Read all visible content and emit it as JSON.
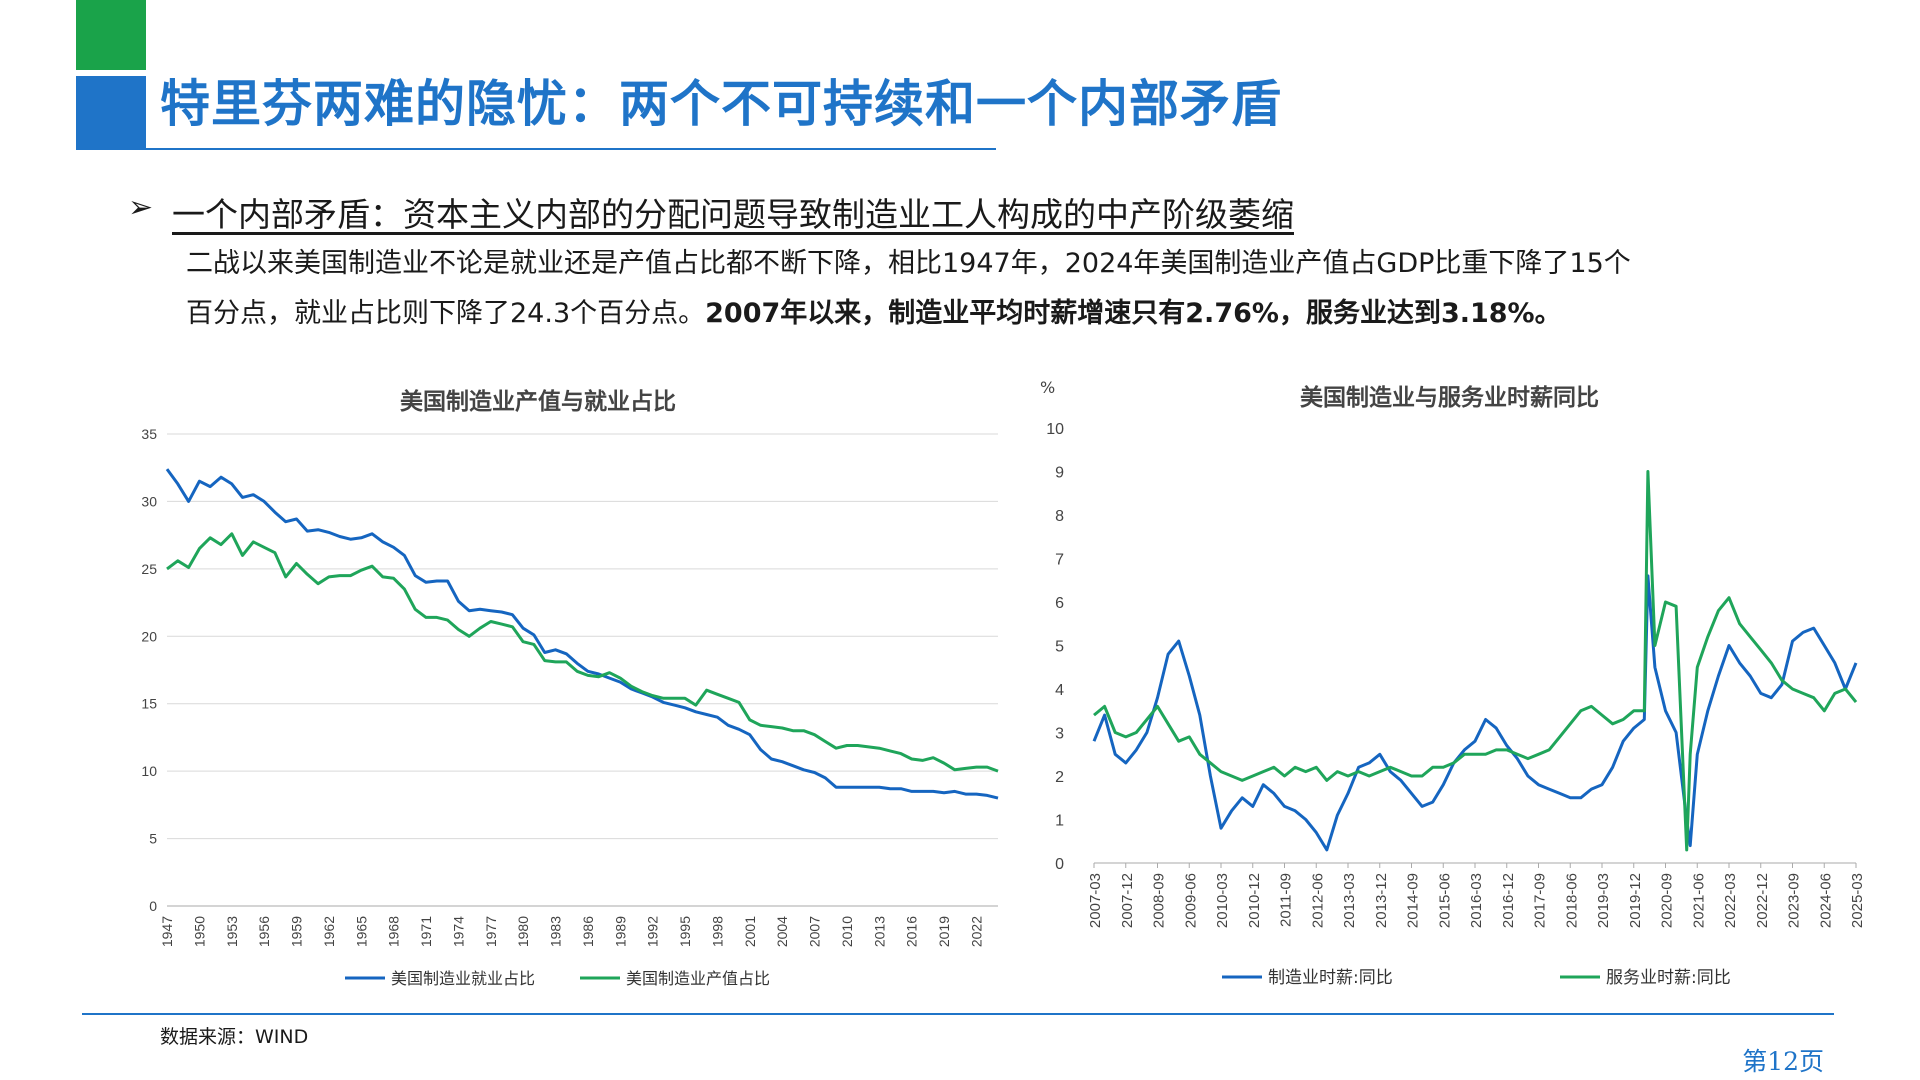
{
  "header": {
    "title": "特里芬两难的隐忧：两个不可持续和一个内部矛盾"
  },
  "section": {
    "bullet_symbol": "➢",
    "subtitle": "一个内部矛盾：资本主义内部的分配问题导致制造业工人构成的中产阶级萎缩",
    "para_line1": "二战以来美国制造业不论是就业还是产值占比都不断下降，相比1947年，2024年美国制造业产值占GDP比重下降了15个",
    "para_line2_normal": "百分点，就业占比则下降了24.3个百分点。",
    "para_line2_bold": "2007年以来，制造业平均时薪增速只有2.76%，服务业达到3.18%。"
  },
  "colors": {
    "accent_blue": "#1f74c8",
    "accent_green": "#1aa34a",
    "series_blue": "#1565c0",
    "series_green": "#1fa55a"
  },
  "footer": {
    "source": "数据来源：WIND",
    "page": "第12页"
  },
  "chart_data": [
    {
      "type": "line",
      "title": "美国制造业产值与就业占比",
      "ylim": [
        0,
        35
      ],
      "yticks": [
        0,
        5,
        10,
        15,
        20,
        25,
        30,
        35
      ],
      "xlim": [
        1947,
        2024
      ],
      "xticks": [
        "1947",
        "1950",
        "1953",
        "1956",
        "1959",
        "1962",
        "1965",
        "1968",
        "1971",
        "1974",
        "1977",
        "1980",
        "1983",
        "1986",
        "1989",
        "1992",
        "1995",
        "1998",
        "2001",
        "2004",
        "2007",
        "2010",
        "2013",
        "2016",
        "2019",
        "2022"
      ],
      "grid": true,
      "legend": "bottom",
      "series": [
        {
          "name": "美国制造业就业占比",
          "color": "#1565c0",
          "x": [
            1947,
            1948,
            1949,
            1950,
            1951,
            1952,
            1953,
            1954,
            1955,
            1956,
            1957,
            1958,
            1959,
            1960,
            1961,
            1962,
            1963,
            1964,
            1965,
            1966,
            1967,
            1968,
            1969,
            1970,
            1971,
            1972,
            1973,
            1974,
            1975,
            1976,
            1977,
            1978,
            1979,
            1980,
            1981,
            1982,
            1983,
            1984,
            1985,
            1986,
            1987,
            1988,
            1989,
            1990,
            1991,
            1992,
            1993,
            1994,
            1995,
            1996,
            1997,
            1998,
            1999,
            2000,
            2001,
            2002,
            2003,
            2004,
            2005,
            2006,
            2007,
            2008,
            2009,
            2010,
            2011,
            2012,
            2013,
            2014,
            2015,
            2016,
            2017,
            2018,
            2019,
            2020,
            2021,
            2022,
            2023,
            2024
          ],
          "y": [
            32.4,
            31.3,
            30.0,
            31.5,
            31.1,
            31.8,
            31.3,
            30.3,
            30.5,
            30.0,
            29.2,
            28.5,
            28.7,
            27.8,
            27.9,
            27.7,
            27.4,
            27.2,
            27.3,
            27.6,
            27.0,
            26.6,
            26.0,
            24.5,
            24.0,
            24.1,
            24.1,
            22.6,
            21.9,
            22.0,
            21.9,
            21.8,
            21.6,
            20.6,
            20.1,
            18.8,
            19.0,
            18.7,
            18.0,
            17.4,
            17.2,
            16.9,
            16.6,
            16.1,
            15.8,
            15.5,
            15.1,
            14.9,
            14.7,
            14.4,
            14.2,
            14.0,
            13.4,
            13.1,
            12.7,
            11.6,
            10.9,
            10.7,
            10.4,
            10.1,
            9.9,
            9.5,
            8.8,
            8.8,
            8.8,
            8.8,
            8.8,
            8.7,
            8.7,
            8.5,
            8.5,
            8.5,
            8.4,
            8.5,
            8.3,
            8.3,
            8.2,
            8.0
          ]
        },
        {
          "name": "美国制造业产值占比",
          "color": "#1fa55a",
          "x": [
            1947,
            1948,
            1949,
            1950,
            1951,
            1952,
            1953,
            1954,
            1955,
            1956,
            1957,
            1958,
            1959,
            1960,
            1961,
            1962,
            1963,
            1964,
            1965,
            1966,
            1967,
            1968,
            1969,
            1970,
            1971,
            1972,
            1973,
            1974,
            1975,
            1976,
            1977,
            1978,
            1979,
            1980,
            1981,
            1982,
            1983,
            1984,
            1985,
            1986,
            1987,
            1988,
            1989,
            1990,
            1991,
            1992,
            1993,
            1994,
            1995,
            1996,
            1997,
            1998,
            1999,
            2000,
            2001,
            2002,
            2003,
            2004,
            2005,
            2006,
            2007,
            2008,
            2009,
            2010,
            2011,
            2012,
            2013,
            2014,
            2015,
            2016,
            2017,
            2018,
            2019,
            2020,
            2021,
            2022,
            2023,
            2024
          ],
          "y": [
            25.0,
            25.6,
            25.1,
            26.5,
            27.3,
            26.8,
            27.6,
            26.0,
            27.0,
            26.6,
            26.2,
            24.4,
            25.4,
            24.6,
            23.9,
            24.4,
            24.5,
            24.5,
            24.9,
            25.2,
            24.4,
            24.3,
            23.5,
            22.0,
            21.4,
            21.4,
            21.2,
            20.5,
            20.0,
            20.6,
            21.1,
            20.9,
            20.7,
            19.6,
            19.4,
            18.2,
            18.1,
            18.1,
            17.4,
            17.1,
            17.0,
            17.3,
            16.9,
            16.3,
            15.9,
            15.6,
            15.4,
            15.4,
            15.4,
            14.9,
            16.0,
            15.7,
            15.4,
            15.1,
            13.8,
            13.4,
            13.3,
            13.2,
            13.0,
            13.0,
            12.7,
            12.2,
            11.7,
            11.9,
            11.9,
            11.8,
            11.7,
            11.5,
            11.3,
            10.9,
            10.8,
            11.0,
            10.6,
            10.1,
            10.2,
            10.3,
            10.3,
            10.0
          ]
        }
      ]
    },
    {
      "type": "line",
      "title": "美国制造业与服务业时薪同比",
      "ylabel": "%",
      "ylim": [
        0,
        10
      ],
      "yticks": [
        0,
        1,
        2,
        3,
        4,
        5,
        6,
        7,
        8,
        9,
        10
      ],
      "xticks": [
        "2007-03",
        "2007-12",
        "2008-09",
        "2009-06",
        "2010-03",
        "2010-12",
        "2011-09",
        "2012-06",
        "2013-03",
        "2013-12",
        "2014-09",
        "2015-06",
        "2016-03",
        "2016-12",
        "2017-09",
        "2018-06",
        "2019-03",
        "2019-12",
        "2020-09",
        "2021-06",
        "2022-03",
        "2022-12",
        "2023-09",
        "2024-06",
        "2025-03"
      ],
      "grid": false,
      "legend": "bottom",
      "series": [
        {
          "name": "制造业时薪:同比",
          "color": "#1565c0",
          "x": [
            "2007-03",
            "2007-06",
            "2007-09",
            "2007-12",
            "2008-03",
            "2008-06",
            "2008-09",
            "2008-12",
            "2009-03",
            "2009-06",
            "2009-09",
            "2009-12",
            "2010-03",
            "2010-06",
            "2010-09",
            "2010-12",
            "2011-03",
            "2011-06",
            "2011-09",
            "2011-12",
            "2012-03",
            "2012-06",
            "2012-09",
            "2012-12",
            "2013-03",
            "2013-06",
            "2013-09",
            "2013-12",
            "2014-03",
            "2014-06",
            "2014-09",
            "2014-12",
            "2015-03",
            "2015-06",
            "2015-09",
            "2015-12",
            "2016-03",
            "2016-06",
            "2016-09",
            "2016-12",
            "2017-03",
            "2017-06",
            "2017-09",
            "2017-12",
            "2018-03",
            "2018-06",
            "2018-09",
            "2018-12",
            "2019-03",
            "2019-06",
            "2019-09",
            "2019-12",
            "2020-03",
            "2020-04",
            "2020-06",
            "2020-09",
            "2020-12",
            "2021-03",
            "2021-04",
            "2021-06",
            "2021-09",
            "2021-12",
            "2022-03",
            "2022-06",
            "2022-09",
            "2022-12",
            "2023-03",
            "2023-06",
            "2023-09",
            "2023-12",
            "2024-03",
            "2024-06",
            "2024-09",
            "2024-12",
            "2025-03"
          ],
          "y": [
            2.8,
            3.4,
            2.5,
            2.3,
            2.6,
            3.0,
            3.8,
            4.8,
            5.1,
            4.3,
            3.4,
            2.0,
            0.8,
            1.2,
            1.5,
            1.3,
            1.8,
            1.6,
            1.3,
            1.2,
            1.0,
            0.7,
            0.3,
            1.1,
            1.6,
            2.2,
            2.3,
            2.5,
            2.1,
            1.9,
            1.6,
            1.3,
            1.4,
            1.8,
            2.3,
            2.6,
            2.8,
            3.3,
            3.1,
            2.7,
            2.4,
            2.0,
            1.8,
            1.7,
            1.6,
            1.5,
            1.5,
            1.7,
            1.8,
            2.2,
            2.8,
            3.1,
            3.3,
            6.6,
            4.5,
            3.5,
            3.0,
            1.0,
            0.4,
            2.5,
            3.5,
            4.3,
            5.0,
            4.6,
            4.3,
            3.9,
            3.8,
            4.1,
            5.1,
            5.3,
            5.4,
            5.0,
            4.6,
            4.0,
            4.6
          ]
        },
        {
          "name": "服务业时薪:同比",
          "color": "#1fa55a",
          "x": [
            "2007-03",
            "2007-06",
            "2007-09",
            "2007-12",
            "2008-03",
            "2008-06",
            "2008-09",
            "2008-12",
            "2009-03",
            "2009-06",
            "2009-09",
            "2009-12",
            "2010-03",
            "2010-06",
            "2010-09",
            "2010-12",
            "2011-03",
            "2011-06",
            "2011-09",
            "2011-12",
            "2012-03",
            "2012-06",
            "2012-09",
            "2012-12",
            "2013-03",
            "2013-06",
            "2013-09",
            "2013-12",
            "2014-03",
            "2014-06",
            "2014-09",
            "2014-12",
            "2015-03",
            "2015-06",
            "2015-09",
            "2015-12",
            "2016-03",
            "2016-06",
            "2016-09",
            "2016-12",
            "2017-03",
            "2017-06",
            "2017-09",
            "2017-12",
            "2018-03",
            "2018-06",
            "2018-09",
            "2018-12",
            "2019-03",
            "2019-06",
            "2019-09",
            "2019-12",
            "2020-03",
            "2020-04",
            "2020-06",
            "2020-09",
            "2020-12",
            "2021-03",
            "2021-04",
            "2021-06",
            "2021-09",
            "2021-12",
            "2022-03",
            "2022-06",
            "2022-09",
            "2022-12",
            "2023-03",
            "2023-06",
            "2023-09",
            "2023-12",
            "2024-03",
            "2024-06",
            "2024-09",
            "2024-12",
            "2025-03"
          ],
          "y": [
            3.4,
            3.6,
            3.0,
            2.9,
            3.0,
            3.3,
            3.6,
            3.2,
            2.8,
            2.9,
            2.5,
            2.3,
            2.1,
            2.0,
            1.9,
            2.0,
            2.1,
            2.2,
            2.0,
            2.2,
            2.1,
            2.2,
            1.9,
            2.1,
            2.0,
            2.1,
            2.0,
            2.1,
            2.2,
            2.1,
            2.0,
            2.0,
            2.2,
            2.2,
            2.3,
            2.5,
            2.5,
            2.5,
            2.6,
            2.6,
            2.5,
            2.4,
            2.5,
            2.6,
            2.9,
            3.2,
            3.5,
            3.6,
            3.4,
            3.2,
            3.3,
            3.5,
            3.5,
            9.0,
            5.0,
            6.0,
            5.9,
            0.3,
            2.5,
            4.5,
            5.2,
            5.8,
            6.1,
            5.5,
            5.2,
            4.9,
            4.6,
            4.2,
            4.0,
            3.9,
            3.8,
            3.5,
            3.9,
            4.0,
            3.7
          ]
        }
      ]
    }
  ]
}
